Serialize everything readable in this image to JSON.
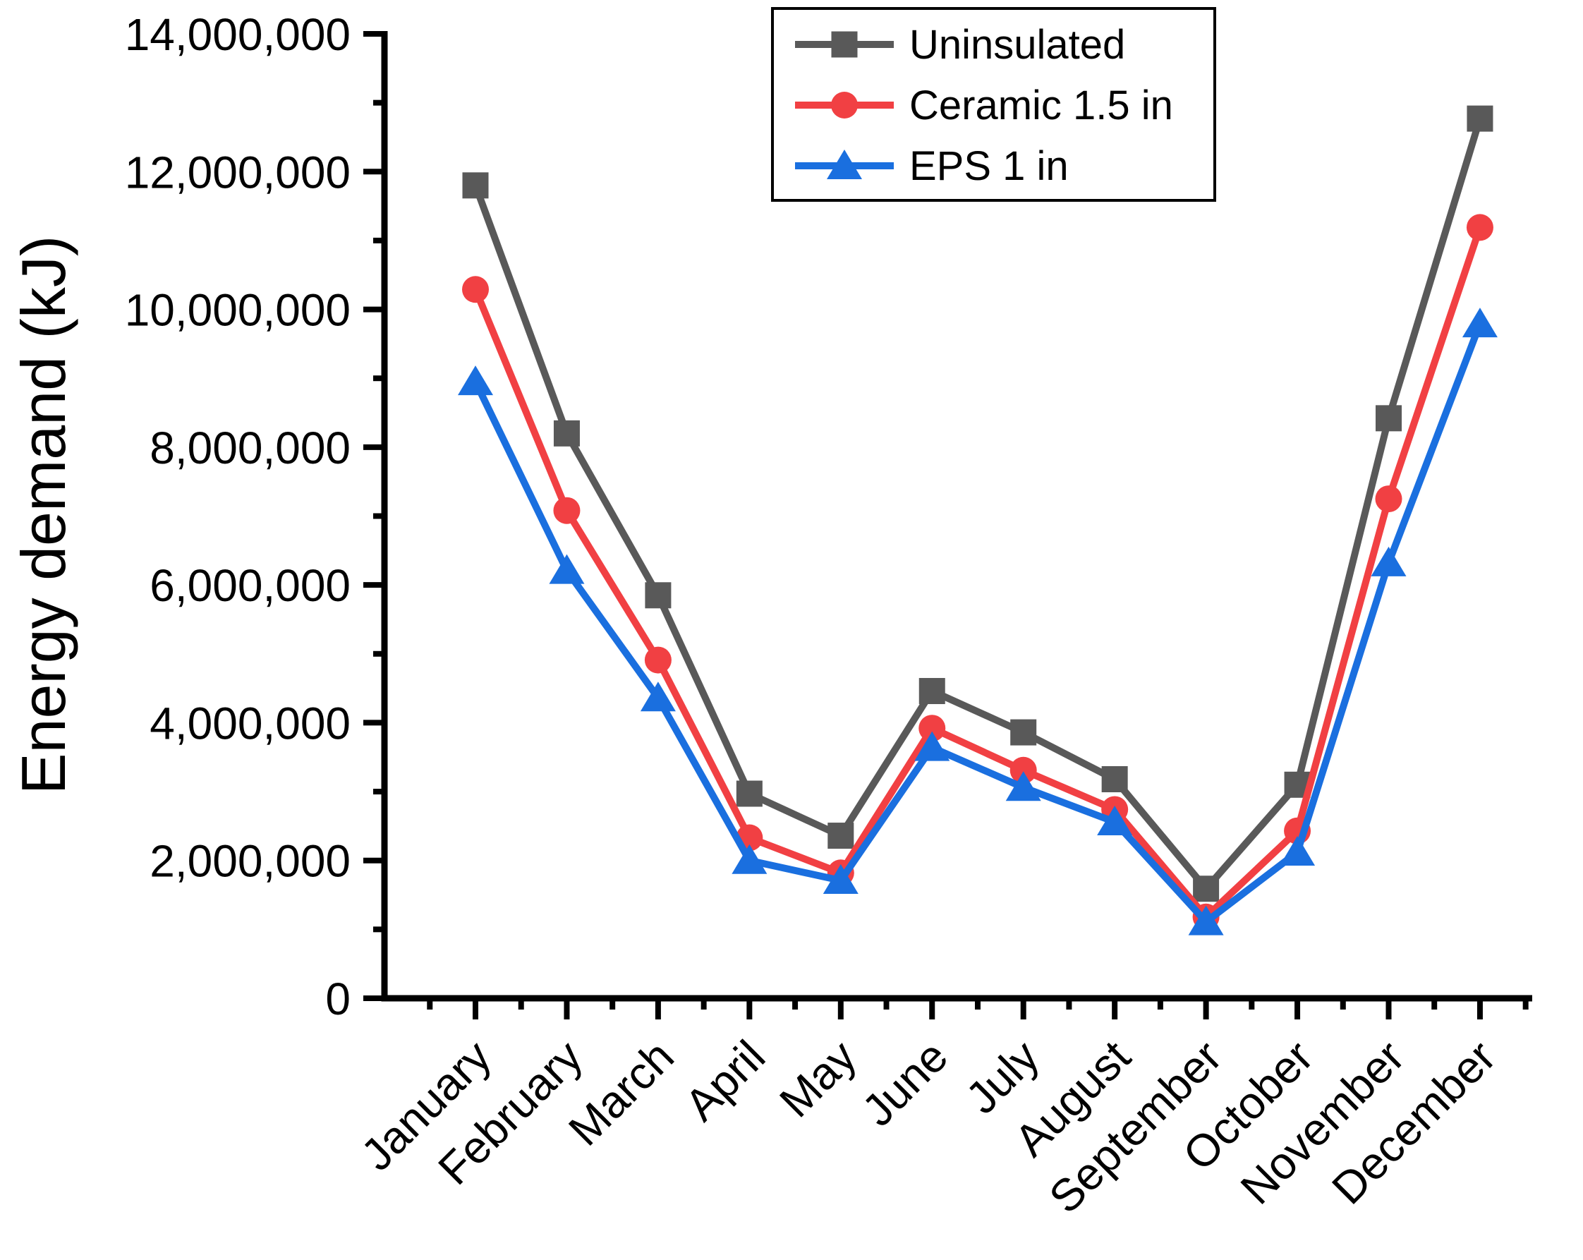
{
  "chart_data": {
    "type": "line",
    "title": "",
    "xlabel": "",
    "ylabel": "Energy demand (kJ)",
    "categories": [
      "January",
      "February",
      "March",
      "April",
      "May",
      "June",
      "July",
      "August",
      "September",
      "October",
      "November",
      "December"
    ],
    "ylim": [
      0,
      14000000
    ],
    "ytick_major_interval": 2000000,
    "ytick_minor_interval": 1000000,
    "ytick_labels": [
      "0",
      "2,000,000",
      "4,000,000",
      "6,000,000",
      "8,000,000",
      "10,000,000",
      "12,000,000",
      "14,000,000"
    ],
    "grid": false,
    "legend_position": "top-center-inside",
    "axis_color": "#000000",
    "series": [
      {
        "name": "Uninsulated",
        "color": "#595959",
        "marker": "square",
        "values": [
          11800000,
          8200000,
          5850000,
          2970000,
          2360000,
          4460000,
          3860000,
          3180000,
          1590000,
          3100000,
          8420000,
          12770000
        ]
      },
      {
        "name": "Ceramic 1.5 in",
        "color": "#F14043",
        "marker": "circle",
        "values": [
          10290000,
          7080000,
          4910000,
          2330000,
          1820000,
          3920000,
          3310000,
          2740000,
          1180000,
          2430000,
          7250000,
          11190000
        ]
      },
      {
        "name": "EPS 1 in",
        "color": "#1A6FDF",
        "marker": "triangle",
        "values": [
          8950000,
          6210000,
          4360000,
          2000000,
          1710000,
          3640000,
          3060000,
          2560000,
          1110000,
          2120000,
          6320000,
          9790000
        ]
      }
    ]
  }
}
